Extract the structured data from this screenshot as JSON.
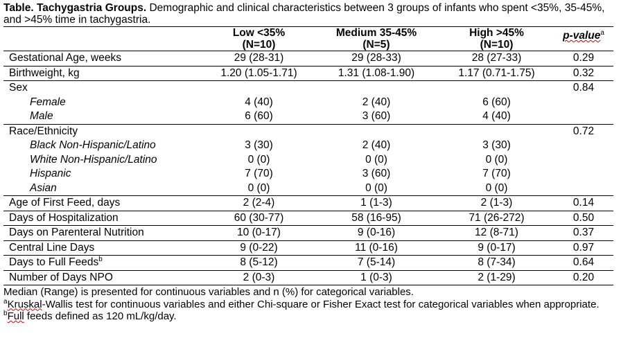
{
  "caption": {
    "title": "Table. Tachygastria Groups.",
    "text": " Demographic and clinical characteristics between 3 groups of infants who spent <35%, 35-45%, and >45% time in tachygastria."
  },
  "headers": {
    "groups": [
      {
        "name": "Low <35%",
        "n": "(N=10)"
      },
      {
        "name": "Medium 35-45%",
        "n": "(N=5)"
      },
      {
        "name": "High >45%",
        "n": "(N=10)"
      }
    ],
    "pvalue": "p-value",
    "pvalue_sup": "a"
  },
  "rows": {
    "ga": {
      "label": "Gestational Age, weeks",
      "v": [
        "29 (28-31)",
        "29 (28-33)",
        "28 (27-33)"
      ],
      "p": "0.29"
    },
    "bw": {
      "label": "Birthweight, kg",
      "v": [
        "1.20 (1.05-1.71)",
        "1.31 (1.08-1.90)",
        "1.17 (0.71-1.75)"
      ],
      "p": "0.32"
    },
    "sex": {
      "label": "Sex",
      "p": "0.84",
      "sub": [
        {
          "label": "Female",
          "v": [
            "4 (40)",
            "2 (40)",
            "6 (60)"
          ]
        },
        {
          "label": "Male",
          "v": [
            "6 (60)",
            "3 (60)",
            "4 (40)"
          ]
        }
      ]
    },
    "race": {
      "label": "Race/Ethnicity",
      "p": "0.72",
      "sub": [
        {
          "label": "Black Non-Hispanic/Latino",
          "v": [
            "3 (30)",
            "2 (40)",
            "3 (30)"
          ]
        },
        {
          "label": "White Non-Hispanic/Latino",
          "v": [
            "0 (0)",
            "0 (0)",
            "0 (0)"
          ]
        },
        {
          "label": "Hispanic",
          "v": [
            "7 (70)",
            "3 (60)",
            "7 (70)"
          ]
        },
        {
          "label": "Asian",
          "v": [
            "0 (0)",
            "0 (0)",
            "0 (0)"
          ]
        }
      ]
    },
    "rest": [
      {
        "label": "Age of First Feed, days",
        "v": [
          "2 (2-4)",
          "1 (1-3)",
          "2 (1-3)"
        ],
        "p": "0.14"
      },
      {
        "label": "Days of Hospitalization",
        "v": [
          "60 (30-77)",
          "58 (16-95)",
          "71 (26-272)"
        ],
        "p": "0.50"
      },
      {
        "label": "Days on Parenteral Nutrition",
        "v": [
          "10 (0-17)",
          "9 (0-16)",
          "12 (8-71)"
        ],
        "p": "0.37"
      },
      {
        "label": "Central Line Days",
        "v": [
          "9 (0-22)",
          "11 (0-16)",
          "9 (0-17)"
        ],
        "p": "0.97"
      },
      {
        "label": "Days to Full Feeds",
        "sup": "b",
        "v": [
          "8 (5-12)",
          "7 (5-14)",
          "8 (7-34)"
        ],
        "p": "0.64"
      },
      {
        "label": "Number of Days NPO",
        "v": [
          "2 (0-3)",
          "1 (0-3)",
          "2 (1-29)"
        ],
        "p": "0.20"
      }
    ]
  },
  "notes": {
    "n1": "Median (Range) is presented for continuous variables and n (%) for categorical variables.",
    "n2_sup": "a",
    "n2_word": "Kruskal",
    "n2_rest": "-Wallis test for continuous variables and either Chi-square or Fisher Exact test for categorical variables when appropriate.",
    "n3_sup": "b",
    "n3_word": "Full",
    "n3_rest": " feeds defined as 120 mL/kg/day."
  }
}
